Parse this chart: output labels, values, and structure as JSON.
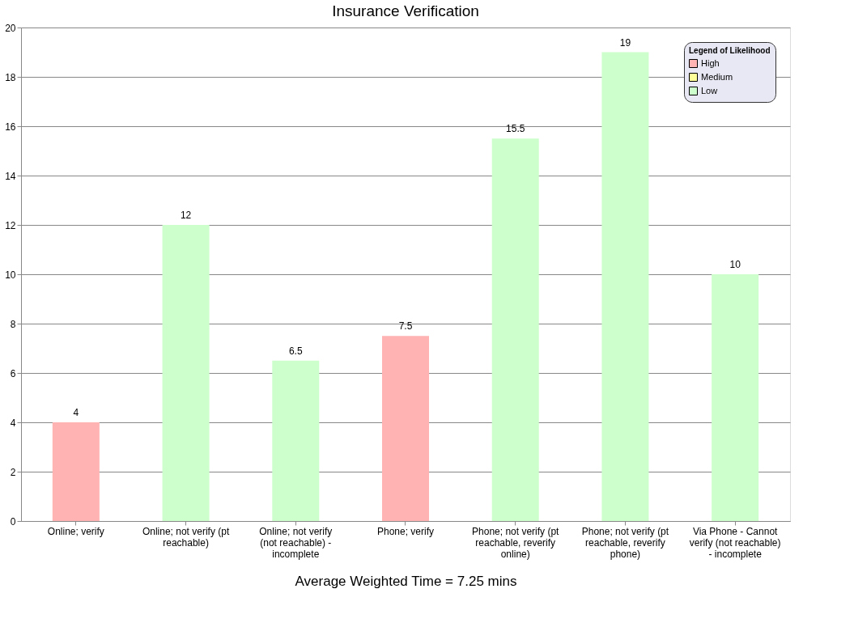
{
  "chart_data": {
    "type": "bar",
    "title": "Insurance Verification",
    "categories": [
      "Online; verify",
      "Online; not verify (pt reachable)",
      "Online; not verify (not reachable) - incomplete",
      "Phone; verify",
      "Phone; not verify (pt reachable, reverify online)",
      "Phone; not verify (pt reachable, reverify phone)",
      "Via Phone - Cannot verify (not reachable) - incomplete"
    ],
    "series": [
      {
        "name": "High",
        "color": "#ffb3b3",
        "values": [
          4,
          null,
          null,
          7.5,
          null,
          null,
          null
        ]
      },
      {
        "name": "Medium",
        "color": "#ffff99",
        "values": [
          null,
          null,
          null,
          null,
          null,
          null,
          null
        ]
      },
      {
        "name": "Low",
        "color": "#ccffcc",
        "values": [
          null,
          12,
          6.5,
          null,
          15.5,
          19,
          10
        ]
      }
    ],
    "legend_title": "Legend of Likelihood",
    "legend": "top right",
    "ylim": [
      0,
      20
    ],
    "yticks": [
      0,
      2,
      4,
      6,
      8,
      10,
      12,
      14,
      16,
      18,
      20
    ],
    "grid": "y",
    "data_labels": true,
    "annotations": [
      "Average Weighted Time = 7.25 mins"
    ]
  }
}
